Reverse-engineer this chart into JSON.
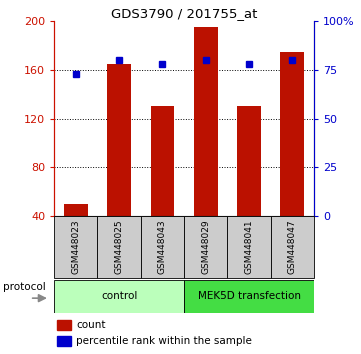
{
  "title": "GDS3790 / 201755_at",
  "samples": [
    "GSM448023",
    "GSM448025",
    "GSM448043",
    "GSM448029",
    "GSM448041",
    "GSM448047"
  ],
  "counts": [
    50,
    165,
    130,
    195,
    130,
    175
  ],
  "percentile_ranks": [
    73,
    80,
    78,
    80,
    78,
    80
  ],
  "groups": [
    {
      "label": "control",
      "color": "#aaffaa",
      "n_cols": 3
    },
    {
      "label": "MEK5D transfection",
      "color": "#44ee44",
      "n_cols": 3
    }
  ],
  "bar_color": "#bb1100",
  "dot_color": "#0000cc",
  "ylim_left": [
    40,
    200
  ],
  "ylim_right": [
    0,
    100
  ],
  "yticks_left": [
    40,
    80,
    120,
    160,
    200
  ],
  "ytick_labels_left": [
    "40",
    "80",
    "120",
    "160",
    "200"
  ],
  "yticks_right": [
    0,
    25,
    50,
    75,
    100
  ],
  "ytick_labels_right": [
    "0",
    "25",
    "50",
    "75",
    "100%"
  ],
  "grid_values": [
    80,
    120,
    160
  ],
  "left_axis_color": "#cc1100",
  "right_axis_color": "#0000cc",
  "protocol_label": "protocol",
  "legend_count": "count",
  "legend_percentile": "percentile rank within the sample",
  "label_area_color": "#cccccc",
  "label_area_edge": "#888888",
  "group_control_color": "#bbffbb",
  "group_mek_color": "#44dd44"
}
